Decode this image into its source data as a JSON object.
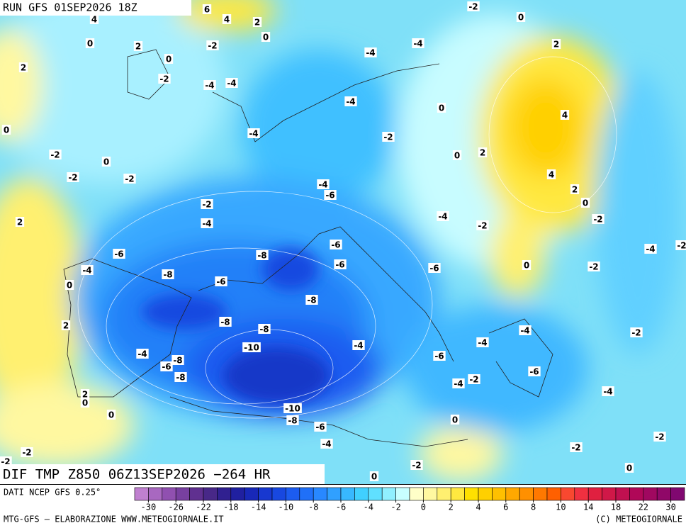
{
  "header": {
    "run": "RUN GFS 01SEP2026 18Z"
  },
  "map": {
    "contour_labels": [
      6,
      4,
      4,
      2,
      0,
      0,
      2,
      0,
      -2,
      2,
      -2,
      -4,
      -4,
      -4,
      -4,
      -2,
      0,
      2,
      0,
      4,
      -4,
      -4,
      0,
      -2,
      -2,
      0,
      -2,
      -2,
      0,
      2,
      4,
      2,
      0,
      -4,
      -6,
      -2,
      -4,
      -4,
      -2,
      -2,
      2,
      -6,
      -4,
      -8,
      -6,
      -6,
      -6,
      0,
      -2,
      -4,
      -2,
      -8,
      0,
      -6,
      -8,
      -8,
      -8,
      2,
      -10,
      -4,
      -4,
      -4,
      -2,
      -4,
      -8,
      -6,
      -6,
      -8,
      -6,
      -4,
      -2,
      -4,
      2,
      0,
      -10,
      0,
      -8,
      -6,
      0,
      -4,
      -2,
      -2,
      -2,
      -2,
      -2,
      0,
      0
    ]
  },
  "title": "DIF TMP Z850 06Z13SEP2026 −264 HR",
  "footer": {
    "source": "DATI NCEP GFS 0.25°",
    "credit": "MTG-GFS — ELABORAZIONE WWW.METEOGIORNALE.IT",
    "copyright": "(C) METEOGIORNALE"
  },
  "colorbar": {
    "colors": [
      "#c080d0",
      "#a868c0",
      "#9050b0",
      "#7840a0",
      "#603090",
      "#482888",
      "#302090",
      "#2020a0",
      "#1828b8",
      "#1838d0",
      "#1848e0",
      "#1c5cf0",
      "#2070f8",
      "#2888ff",
      "#30a0ff",
      "#38b8ff",
      "#40d0ff",
      "#60e0ff",
      "#90f0ff",
      "#c8ffff",
      "#ffffc8",
      "#fff8a0",
      "#fff070",
      "#ffe840",
      "#ffe000",
      "#ffd000",
      "#ffc000",
      "#ffa800",
      "#ff9000",
      "#ff7800",
      "#ff6000",
      "#f84830",
      "#f03040",
      "#e02040",
      "#d01848",
      "#c01050",
      "#b00858",
      "#a00860",
      "#900868",
      "#800870"
    ],
    "ticks": [
      -30,
      -26,
      -22,
      -18,
      -14,
      -10,
      -8,
      -6,
      -4,
      -2,
      0,
      2,
      4,
      6,
      8,
      10,
      14,
      18,
      22,
      30
    ]
  }
}
